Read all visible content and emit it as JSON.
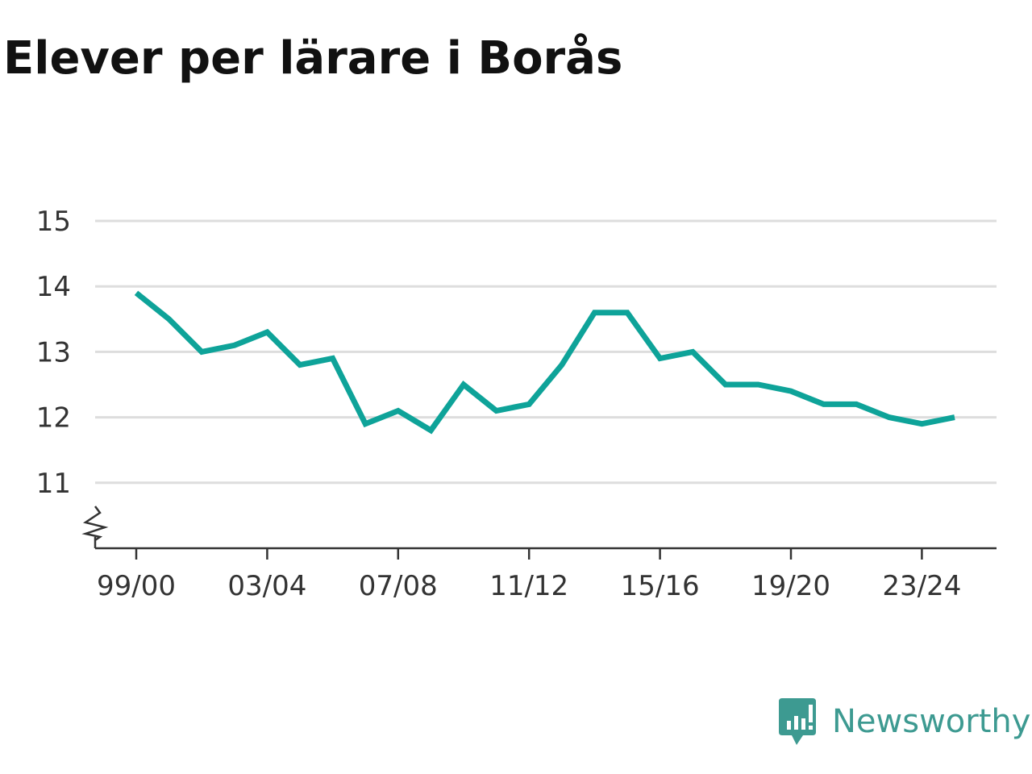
{
  "chart_data": {
    "type": "line",
    "title": "Elever per lärare i Borås",
    "xlabel": "",
    "ylabel": "",
    "x": [
      "99/00",
      "00/01",
      "01/02",
      "02/03",
      "03/04",
      "04/05",
      "05/06",
      "06/07",
      "07/08",
      "08/09",
      "09/10",
      "10/11",
      "11/12",
      "12/13",
      "13/14",
      "14/15",
      "15/16",
      "16/17",
      "17/18",
      "18/19",
      "19/20",
      "20/21",
      "21/22",
      "22/23",
      "23/24",
      "24/25"
    ],
    "x_tick_labels": [
      "99/00",
      "03/04",
      "07/08",
      "11/12",
      "15/16",
      "19/20",
      "23/24"
    ],
    "y_ticks": [
      11,
      12,
      13,
      14,
      15
    ],
    "ylim": [
      10,
      15
    ],
    "axis_break": true,
    "grid": "horizontal",
    "series": [
      {
        "color": "#0ea399",
        "values": [
          13.9,
          13.5,
          13.0,
          13.1,
          13.3,
          12.8,
          12.9,
          11.9,
          12.1,
          11.8,
          12.5,
          12.1,
          12.2,
          12.8,
          13.6,
          13.6,
          12.9,
          13.0,
          12.5,
          12.5,
          12.4,
          12.2,
          12.2,
          12.0,
          11.9,
          12.0
        ]
      }
    ]
  },
  "brand": {
    "name": "Newsworthy",
    "icon": "newsworthy-logo-icon",
    "color": "#3d9a91"
  },
  "colors": {
    "grid": "#dddddd",
    "axis": "#333333",
    "title": "#111111"
  }
}
